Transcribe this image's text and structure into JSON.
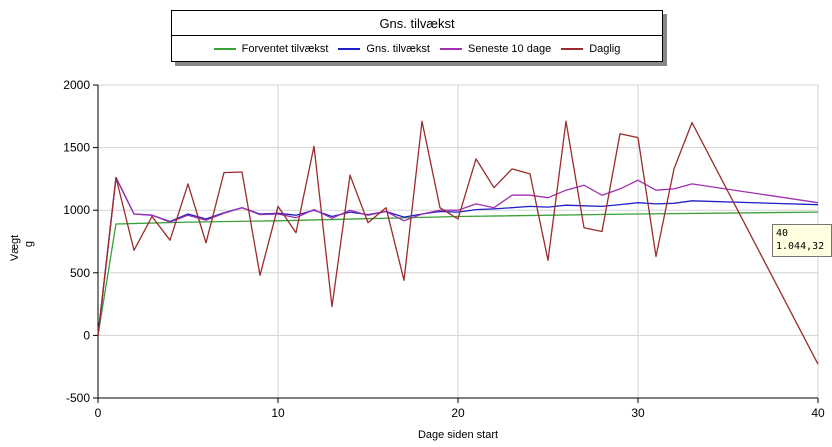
{
  "chart_data": {
    "type": "line",
    "title": "Gns. tilvækst",
    "xlabel": "Dage siden start",
    "ylabel": "Vægt",
    "yunit": "g",
    "xlim": [
      0,
      40
    ],
    "ylim": [
      -500,
      2000
    ],
    "xticks": [
      0,
      10,
      20,
      30,
      40
    ],
    "yticks": [
      -500,
      0,
      500,
      1000,
      1500,
      2000
    ],
    "grid": true,
    "legend_position": "top",
    "series": [
      {
        "name": "Forventet tilvækst",
        "color": "#3aa13a",
        "x": [
          0,
          1,
          5,
          10,
          20,
          30,
          40
        ],
        "y": [
          0,
          890,
          905,
          915,
          950,
          970,
          985
        ]
      },
      {
        "name": "Gns. tilvækst",
        "color": "#2020c8",
        "x": [
          0,
          1,
          2,
          3,
          4,
          5,
          6,
          7,
          8,
          9,
          10,
          11,
          12,
          13,
          14,
          15,
          16,
          17,
          18,
          19,
          20,
          21,
          22,
          23,
          24,
          25,
          26,
          27,
          28,
          29,
          30,
          31,
          32,
          33,
          40
        ],
        "y": [
          0,
          1260,
          970,
          960,
          910,
          970,
          930,
          980,
          1020,
          970,
          975,
          960,
          1000,
          950,
          985,
          965,
          990,
          945,
          970,
          990,
          985,
          1005,
          1010,
          1020,
          1030,
          1025,
          1040,
          1035,
          1030,
          1045,
          1060,
          1050,
          1055,
          1075,
          1044
        ]
      },
      {
        "name": "Seneste 10 dage",
        "color": "#a030b0",
        "x": [
          0,
          1,
          2,
          3,
          4,
          5,
          6,
          7,
          8,
          9,
          10,
          11,
          12,
          13,
          14,
          15,
          16,
          17,
          18,
          19,
          20,
          21,
          22,
          23,
          24,
          25,
          26,
          27,
          28,
          29,
          30,
          31,
          32,
          33,
          40
        ],
        "y": [
          0,
          1260,
          970,
          960,
          905,
          960,
          920,
          975,
          1020,
          965,
          970,
          940,
          1005,
          935,
          1000,
          960,
          990,
          915,
          970,
          1000,
          1000,
          1050,
          1020,
          1120,
          1120,
          1100,
          1160,
          1200,
          1120,
          1170,
          1240,
          1160,
          1170,
          1210,
          1060
        ]
      },
      {
        "name": "Daglig",
        "color": "#9c2b2b",
        "x": [
          0,
          1,
          2,
          3,
          4,
          5,
          6,
          7,
          8,
          9,
          10,
          11,
          12,
          13,
          14,
          15,
          16,
          17,
          18,
          19,
          20,
          21,
          22,
          23,
          24,
          25,
          26,
          27,
          28,
          29,
          30,
          31,
          32,
          33,
          40
        ],
        "y": [
          0,
          1260,
          680,
          950,
          760,
          1210,
          740,
          1300,
          1305,
          480,
          1030,
          820,
          1510,
          230,
          1280,
          900,
          1020,
          440,
          1710,
          1020,
          930,
          1410,
          1180,
          1330,
          1290,
          600,
          1710,
          860,
          830,
          1610,
          1580,
          630,
          1330,
          1700,
          -230
        ]
      }
    ],
    "tooltip": {
      "line1": "40",
      "line2": "1.044,32"
    }
  }
}
